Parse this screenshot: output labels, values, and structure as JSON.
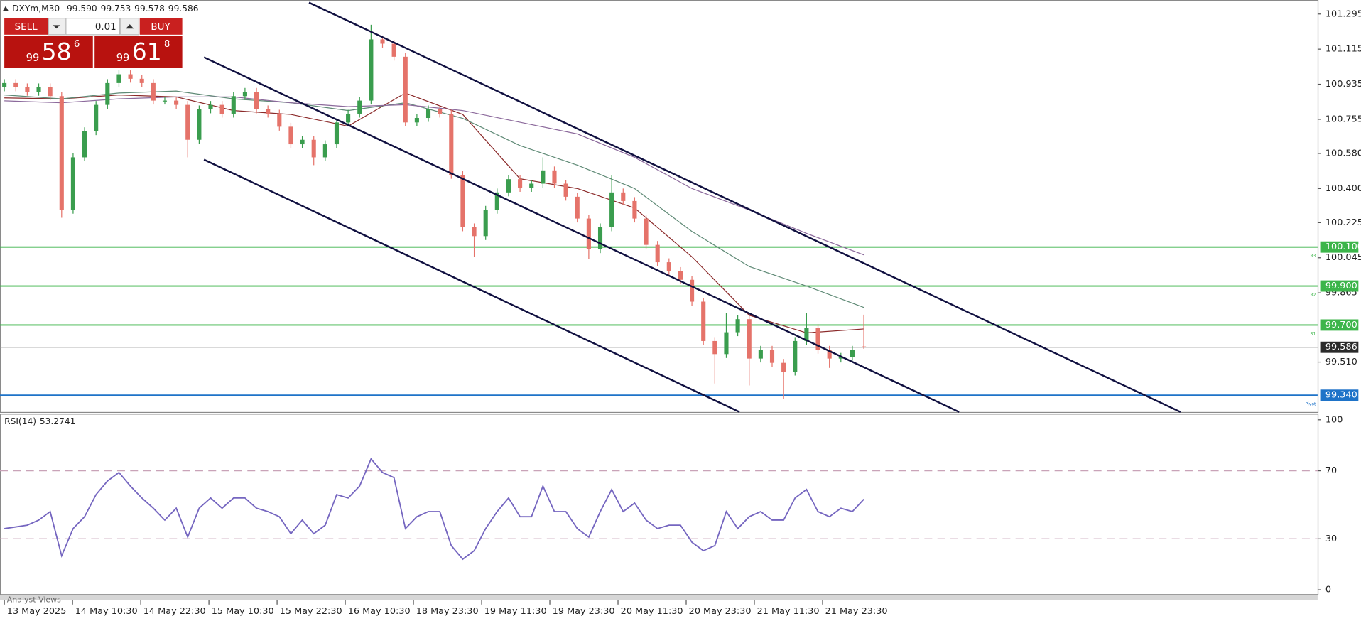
{
  "trade_panel": {
    "sell": "SELL",
    "buy": "BUY",
    "lot": "0.01",
    "bid": {
      "big_figure": "99",
      "pips": "58",
      "point": "6"
    },
    "ask": {
      "big_figure": "99",
      "pips": "61",
      "point": "8"
    }
  },
  "chart_data": [
    {
      "type": "candlestick",
      "title": "DXYm,M30",
      "ohlc_labels": [
        "99.590",
        "99.753",
        "99.578",
        "99.586"
      ],
      "colors": {
        "up": "#3a9d4e",
        "down": "#e5736a"
      },
      "open": [
        100.919,
        100.941,
        100.919,
        100.896,
        100.919,
        100.874,
        100.291,
        100.56,
        100.694,
        100.829,
        100.941,
        100.986,
        100.963,
        100.941,
        100.851,
        100.851,
        100.829,
        100.65,
        100.806,
        100.829,
        100.784,
        100.874,
        100.896,
        100.806,
        100.784,
        100.717,
        100.627,
        100.65,
        100.56,
        100.627,
        100.739,
        100.784,
        100.851,
        101.165,
        101.143,
        101.076,
        100.739,
        100.762,
        100.806,
        100.784,
        100.47,
        100.201,
        100.156,
        100.291,
        100.38,
        100.448,
        100.403,
        100.425,
        100.493,
        100.425,
        100.358,
        100.246,
        100.089,
        100.201,
        100.38,
        100.336,
        100.246,
        100.111,
        100.022,
        99.977,
        99.932,
        99.82,
        99.618,
        99.551,
        99.663,
        99.73,
        99.528,
        99.573,
        99.506,
        99.461,
        99.618,
        99.685,
        99.573,
        99.528,
        99.537,
        99.59
      ],
      "high": [
        100.961,
        100.961,
        100.939,
        100.939,
        100.939,
        100.894,
        100.58,
        100.714,
        100.849,
        100.961,
        101.006,
        101.006,
        100.983,
        100.961,
        100.871,
        100.871,
        100.849,
        100.826,
        100.849,
        100.849,
        100.894,
        100.916,
        100.916,
        100.826,
        100.804,
        100.737,
        100.67,
        100.67,
        100.647,
        100.759,
        100.804,
        100.871,
        101.24,
        101.185,
        101.163,
        101.096,
        100.782,
        100.826,
        100.826,
        100.804,
        100.49,
        100.221,
        100.311,
        100.4,
        100.468,
        100.468,
        100.445,
        100.56,
        100.513,
        100.445,
        100.378,
        100.266,
        100.221,
        100.47,
        100.4,
        100.356,
        100.266,
        100.131,
        100.042,
        99.997,
        99.952,
        99.84,
        99.638,
        99.76,
        99.75,
        99.75,
        99.593,
        99.593,
        99.526,
        99.638,
        99.76,
        99.705,
        99.593,
        99.557,
        99.593,
        99.753
      ],
      "low": [
        100.899,
        100.899,
        100.876,
        100.876,
        100.854,
        100.25,
        100.271,
        100.54,
        100.674,
        100.809,
        100.921,
        100.943,
        100.921,
        100.831,
        100.831,
        100.809,
        100.56,
        100.63,
        100.786,
        100.764,
        100.764,
        100.854,
        100.786,
        100.764,
        100.697,
        100.607,
        100.607,
        100.52,
        100.54,
        100.607,
        100.719,
        100.764,
        100.831,
        101.123,
        101.056,
        100.719,
        100.719,
        100.742,
        100.764,
        100.45,
        100.181,
        100.05,
        100.136,
        100.271,
        100.36,
        100.383,
        100.383,
        100.405,
        100.405,
        100.338,
        100.226,
        100.04,
        100.069,
        100.181,
        100.316,
        100.226,
        100.091,
        100.002,
        99.957,
        99.912,
        99.8,
        99.598,
        99.4,
        99.531,
        99.643,
        99.39,
        99.508,
        99.486,
        99.32,
        99.441,
        99.598,
        99.553,
        99.48,
        99.508,
        99.517,
        99.578
      ],
      "close": [
        100.941,
        100.919,
        100.896,
        100.919,
        100.874,
        100.291,
        100.56,
        100.694,
        100.829,
        100.941,
        100.986,
        100.963,
        100.941,
        100.851,
        100.851,
        100.829,
        100.65,
        100.806,
        100.829,
        100.784,
        100.874,
        100.896,
        100.806,
        100.784,
        100.717,
        100.627,
        100.65,
        100.56,
        100.627,
        100.739,
        100.784,
        100.851,
        101.165,
        101.143,
        101.076,
        100.739,
        100.762,
        100.806,
        100.784,
        100.47,
        100.201,
        100.156,
        100.291,
        100.38,
        100.448,
        100.403,
        100.425,
        100.493,
        100.425,
        100.358,
        100.246,
        100.089,
        100.201,
        100.38,
        100.336,
        100.246,
        100.111,
        100.022,
        99.977,
        99.932,
        99.82,
        99.618,
        99.551,
        99.663,
        99.73,
        99.528,
        99.573,
        99.506,
        99.461,
        99.618,
        99.685,
        99.573,
        99.528,
        99.537,
        99.573,
        99.586
      ],
      "overlays": [
        {
          "color": "#8b2a2a",
          "x": [
            0,
            5,
            10,
            15,
            20,
            25,
            30,
            35,
            40,
            45,
            50,
            55,
            60,
            65,
            70,
            75
          ],
          "values": [
            100.865,
            100.86,
            100.88,
            100.87,
            100.8,
            100.78,
            100.72,
            100.89,
            100.78,
            100.45,
            100.4,
            100.3,
            100.05,
            99.75,
            99.66,
            99.68
          ]
        },
        {
          "color": "#5f8a76",
          "x": [
            0,
            5,
            10,
            15,
            20,
            25,
            30,
            35,
            40,
            45,
            50,
            55,
            60,
            65,
            70,
            75
          ],
          "values": [
            100.88,
            100.86,
            100.89,
            100.9,
            100.86,
            100.84,
            100.8,
            100.84,
            100.76,
            100.62,
            100.52,
            100.4,
            100.18,
            100.0,
            99.9,
            99.79
          ]
        },
        {
          "color": "#8c6a9c",
          "x": [
            0,
            5,
            10,
            15,
            20,
            25,
            30,
            35,
            40,
            45,
            50,
            55,
            60,
            65,
            70,
            75
          ],
          "values": [
            100.85,
            100.84,
            100.86,
            100.87,
            100.87,
            100.84,
            100.82,
            100.83,
            100.8,
            100.74,
            100.68,
            100.56,
            100.4,
            100.29,
            100.17,
            100.06
          ]
        }
      ],
      "levels": [
        {
          "value": 100.1,
          "label": "100.100",
          "tag": "R3",
          "color": "#3cb54a"
        },
        {
          "value": 99.9,
          "label": "99.900",
          "tag": "R2",
          "color": "#3cb54a"
        },
        {
          "value": 99.7,
          "label": "99.700",
          "tag": "R1",
          "color": "#3cb54a"
        },
        {
          "value": 99.586,
          "color": "#9a9a9a",
          "label_color": "#2b2b2b"
        },
        {
          "value": 99.34,
          "label": "99.340",
          "tag": "Pivot",
          "color": "#1e73c8"
        }
      ],
      "xlim": [
        -0.38,
        114.6
      ],
      "xticks": [
        {
          "value": 0,
          "label": "13 May 2025"
        },
        {
          "value": 5.95,
          "label": "14 May 10:30"
        },
        {
          "value": 11.9,
          "label": "14 May 22:30"
        },
        {
          "value": 17.85,
          "label": "15 May 10:30"
        },
        {
          "value": 23.8,
          "label": "15 May 22:30"
        },
        {
          "value": 29.75,
          "label": "16 May 10:30"
        },
        {
          "value": 35.7,
          "label": "18 May 23:30"
        },
        {
          "value": 41.65,
          "label": "19 May 11:30"
        },
        {
          "value": 47.6,
          "label": "19 May 23:30"
        },
        {
          "value": 53.55,
          "label": "20 May 11:30"
        },
        {
          "value": 59.5,
          "label": "20 May 23:30"
        },
        {
          "value": 65.45,
          "label": "21 May 11:30"
        },
        {
          "value": 71.4,
          "label": "21 May 23:30"
        }
      ],
      "ylim": [
        99.254,
        101.367
      ],
      "yticks": [
        101.295,
        101.115,
        100.935,
        100.755,
        {
          "value": 100.58,
          "label": "100.580"
        },
        {
          "value": 100.4,
          "label": "100.400"
        },
        100.225,
        100.045,
        99.865,
        {
          "value": 99.51,
          "label": "99.510"
        }
      ]
    },
    {
      "type": "line",
      "title": "RSI(14)",
      "color": "#7566c0",
      "values": [
        36,
        37,
        38,
        41,
        46,
        20,
        36,
        43,
        56,
        64,
        69,
        61,
        54,
        48,
        41,
        48,
        31,
        48,
        54,
        48,
        54,
        54,
        48,
        46,
        43,
        33,
        41,
        33,
        38,
        56,
        54,
        61,
        77,
        69,
        66,
        36,
        43,
        46,
        46,
        26,
        18,
        23,
        36,
        46,
        54,
        43,
        43,
        61,
        46,
        46,
        36,
        31,
        46,
        59,
        46,
        51,
        41,
        36,
        38,
        38,
        28,
        23,
        26,
        46,
        36,
        43,
        46,
        41,
        41,
        54,
        59,
        46,
        43,
        48,
        46,
        53.2741
      ],
      "ylim": [
        0,
        100
      ],
      "yticks": [
        0,
        30,
        70,
        100
      ],
      "levels": [
        30,
        70
      ],
      "level_color": "#c9a3b8"
    }
  ],
  "footer": {
    "tab": "Analyst Views"
  }
}
